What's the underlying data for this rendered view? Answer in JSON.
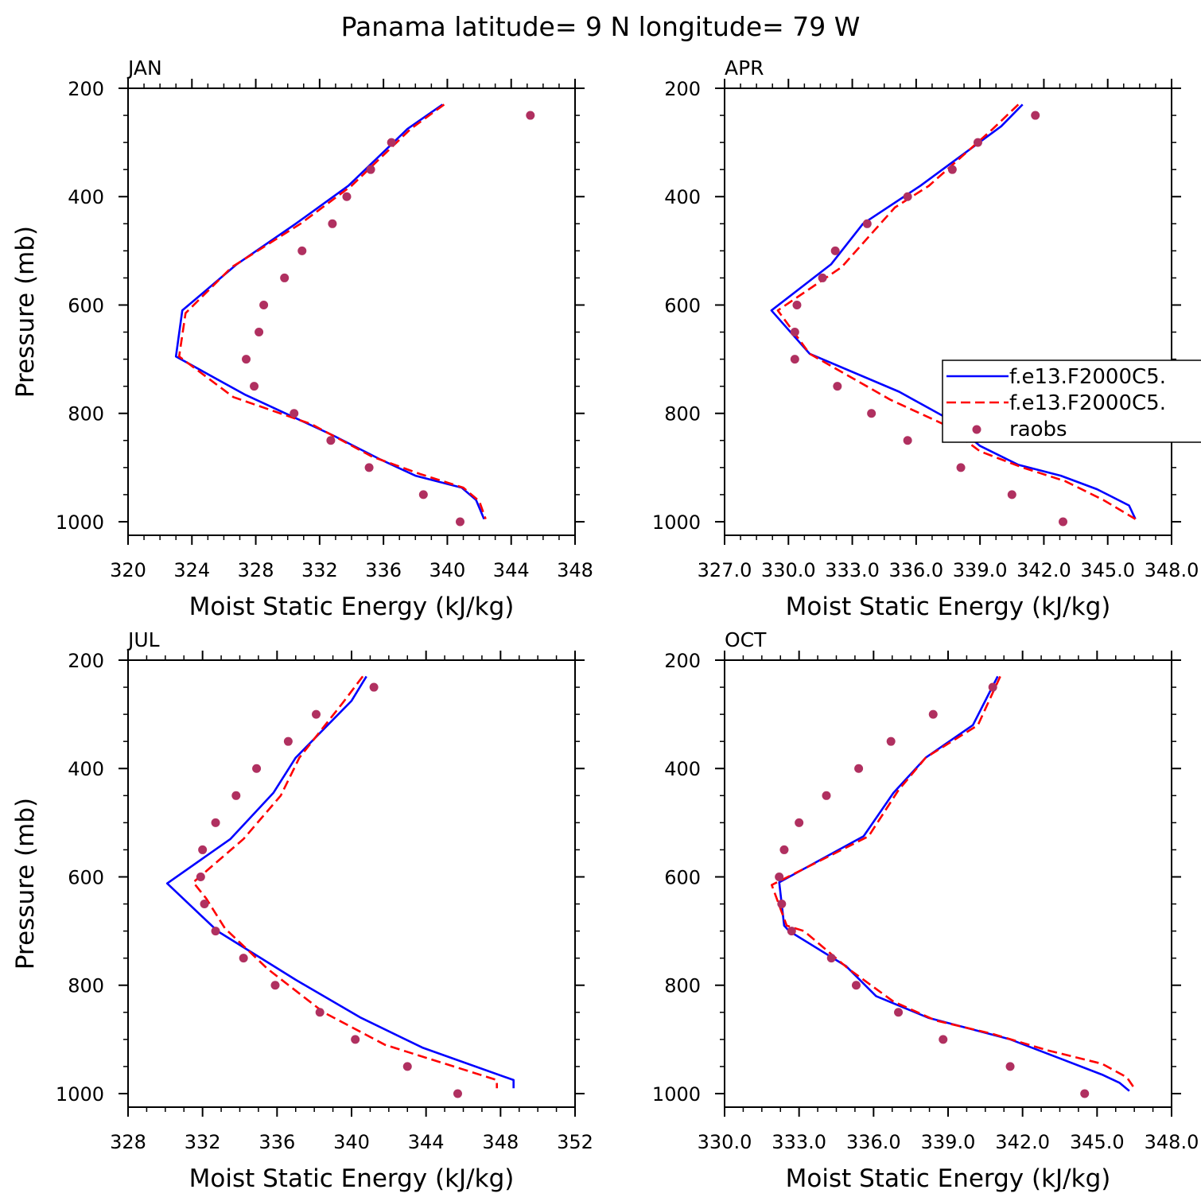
{
  "title": "Panama  latitude= 9 N longitude= 79 W",
  "legend": {
    "placement": "right-of-apr-panel",
    "entries": [
      {
        "label": "f.e13.F2000C5.",
        "color": "#0000ff",
        "style": "solid"
      },
      {
        "label": "f.e13.F2000C5.",
        "color": "#ff0000",
        "style": "dashed"
      },
      {
        "label": "raobs",
        "color": "#b03060",
        "style": "dot"
      }
    ]
  },
  "chart_data": [
    {
      "type": "line",
      "title": "JAN",
      "xlabel": "Moist Static Energy (kJ/kg)",
      "ylabel": "Pressure (mb)",
      "xlim": [
        320,
        348
      ],
      "ylim": [
        200,
        1025
      ],
      "y_inverted": true,
      "xticks": [
        320,
        324,
        328,
        332,
        336,
        340,
        344,
        348
      ],
      "xtick_labels": [
        "320",
        "324",
        "328",
        "332",
        "336",
        "340",
        "344",
        "348"
      ],
      "yticks": [
        200,
        400,
        600,
        800,
        1000
      ],
      "ytick_labels": [
        "200",
        "400",
        "600",
        "800",
        "1000"
      ],
      "series": [
        {
          "name": "f.e13.F2000C5.",
          "color": "#0000ff",
          "style": "solid",
          "x": [
            339.7,
            337.5,
            333.8,
            330.5,
            326.8,
            323.4,
            323.0,
            327.3,
            332.8,
            335.8,
            338.0,
            340.9,
            341.8,
            342.3
          ],
          "y": [
            230,
            275,
            380,
            450,
            525,
            610,
            695,
            765,
            840,
            885,
            915,
            937,
            960,
            995
          ]
        },
        {
          "name": "f.e13.F2000C5.",
          "color": "#ff0000",
          "style": "dashed",
          "x": [
            339.8,
            337.7,
            334.0,
            330.8,
            326.5,
            323.6,
            323.2,
            326.6,
            331.5,
            335.3,
            338.3,
            341.0,
            342.0,
            342.4
          ],
          "y": [
            230,
            275,
            380,
            450,
            530,
            615,
            695,
            770,
            820,
            880,
            912,
            937,
            962,
            995
          ]
        },
        {
          "name": "raobs",
          "color": "#b03060",
          "style": "dot",
          "x": [
            345.2,
            336.5,
            335.2,
            333.7,
            332.8,
            330.9,
            329.8,
            328.5,
            328.2,
            327.4,
            327.9,
            330.4,
            332.7,
            335.1,
            338.5,
            340.8
          ],
          "y": [
            250,
            300,
            350,
            400,
            450,
            500,
            550,
            600,
            650,
            700,
            750,
            800,
            850,
            900,
            950,
            1000
          ]
        }
      ]
    },
    {
      "type": "line",
      "title": "APR",
      "xlabel": "Moist Static Energy (kJ/kg)",
      "ylabel": "",
      "xlim": [
        327.0,
        348.0
      ],
      "ylim": [
        200,
        1025
      ],
      "y_inverted": true,
      "xticks": [
        327,
        330,
        333,
        336,
        339,
        342,
        345,
        348
      ],
      "xtick_labels": [
        "327.0",
        "330.0",
        "333.0",
        "336.0",
        "339.0",
        "342.0",
        "345.0",
        "348.0"
      ],
      "yticks": [
        200,
        400,
        600,
        800,
        1000
      ],
      "ytick_labels": [
        "200",
        "400",
        "600",
        "800",
        "1000"
      ],
      "series": [
        {
          "name": "f.e13.F2000C5.",
          "color": "#0000ff",
          "style": "solid",
          "x": [
            341.0,
            340.0,
            336.2,
            333.5,
            332.0,
            329.2,
            331.0,
            335.2,
            337.5,
            339.0,
            340.8,
            342.8,
            344.5,
            346.0,
            346.3
          ],
          "y": [
            230,
            270,
            380,
            450,
            525,
            610,
            690,
            760,
            810,
            860,
            895,
            915,
            940,
            970,
            995
          ]
        },
        {
          "name": "f.e13.F2000C5.",
          "color": "#ff0000",
          "style": "dashed",
          "x": [
            340.8,
            339.6,
            336.6,
            335.0,
            332.5,
            329.5,
            331.0,
            334.8,
            337.3,
            339.0,
            341.0,
            343.0,
            344.8,
            346.3
          ],
          "y": [
            230,
            275,
            380,
            420,
            530,
            610,
            690,
            775,
            820,
            870,
            900,
            925,
            960,
            995
          ]
        },
        {
          "name": "raobs",
          "color": "#b03060",
          "style": "dot",
          "x": [
            341.6,
            338.9,
            337.7,
            335.6,
            333.7,
            332.2,
            331.6,
            330.4,
            330.3,
            330.3,
            332.3,
            333.9,
            335.6,
            338.1,
            340.5,
            342.9
          ],
          "y": [
            250,
            300,
            350,
            400,
            450,
            500,
            550,
            600,
            650,
            700,
            750,
            800,
            850,
            900,
            950,
            1000
          ]
        }
      ]
    },
    {
      "type": "line",
      "title": "JUL",
      "xlabel": "Moist Static Energy (kJ/kg)",
      "ylabel": "Pressure (mb)",
      "xlim": [
        328,
        352
      ],
      "ylim": [
        200,
        1025
      ],
      "y_inverted": true,
      "xticks": [
        328,
        332,
        336,
        340,
        344,
        348,
        352
      ],
      "xtick_labels": [
        "328",
        "332",
        "336",
        "340",
        "344",
        "348",
        "352"
      ],
      "yticks": [
        200,
        400,
        600,
        800,
        1000
      ],
      "ytick_labels": [
        "200",
        "400",
        "600",
        "800",
        "1000"
      ],
      "series": [
        {
          "name": "f.e13.F2000C5.",
          "color": "#0000ff",
          "style": "solid",
          "x": [
            340.8,
            340.0,
            337.0,
            335.8,
            333.5,
            330.1,
            332.8,
            337.0,
            340.5,
            343.8,
            348.7,
            348.7
          ],
          "y": [
            230,
            275,
            380,
            445,
            530,
            612,
            700,
            790,
            860,
            915,
            975,
            990
          ]
        },
        {
          "name": "f.e13.F2000C5.",
          "color": "#ff0000",
          "style": "dashed",
          "x": [
            340.6,
            339.5,
            337.2,
            336.2,
            334.2,
            331.5,
            332.2,
            333.2,
            335.5,
            338.5,
            341.8,
            347.8,
            347.8
          ],
          "y": [
            230,
            280,
            380,
            450,
            530,
            610,
            640,
            695,
            770,
            850,
            910,
            975,
            990
          ]
        },
        {
          "name": "raobs",
          "color": "#b03060",
          "style": "dot",
          "x": [
            341.2,
            338.1,
            336.6,
            334.9,
            333.8,
            332.7,
            332.0,
            331.9,
            332.1,
            332.7,
            334.2,
            335.9,
            338.3,
            340.2,
            343.0,
            345.7
          ],
          "y": [
            250,
            300,
            350,
            400,
            450,
            500,
            550,
            600,
            650,
            700,
            750,
            800,
            850,
            900,
            950,
            1000
          ]
        }
      ]
    },
    {
      "type": "line",
      "title": "OCT",
      "xlabel": "Moist Static Energy (kJ/kg)",
      "ylabel": "",
      "xlim": [
        330.0,
        348.0
      ],
      "ylim": [
        200,
        1025
      ],
      "y_inverted": true,
      "xticks": [
        330,
        333,
        336,
        339,
        342,
        345,
        348
      ],
      "xtick_labels": [
        "330.0",
        "333.0",
        "336.0",
        "339.0",
        "342.0",
        "345.0",
        "348.0"
      ],
      "yticks": [
        200,
        400,
        600,
        800,
        1000
      ],
      "ytick_labels": [
        "200",
        "400",
        "600",
        "800",
        "1000"
      ],
      "series": [
        {
          "name": "f.e13.F2000C5.",
          "color": "#0000ff",
          "style": "solid",
          "x": [
            341.0,
            340.0,
            338.1,
            336.8,
            335.6,
            332.2,
            332.4,
            332.6,
            334.9,
            336.1,
            338.2,
            341.5,
            343.5,
            345.2,
            345.9,
            346.3
          ],
          "y": [
            230,
            320,
            380,
            445,
            525,
            610,
            690,
            700,
            765,
            820,
            860,
            900,
            935,
            965,
            980,
            995
          ]
        },
        {
          "name": "f.e13.F2000C5.",
          "color": "#ff0000",
          "style": "dashed",
          "x": [
            341.1,
            340.2,
            338.1,
            337.0,
            335.8,
            331.9,
            332.5,
            333.2,
            335.0,
            336.8,
            338.5,
            340.8,
            343.0,
            345.2,
            346.2,
            346.5
          ],
          "y": [
            230,
            320,
            380,
            440,
            525,
            615,
            690,
            700,
            770,
            830,
            865,
            890,
            920,
            945,
            970,
            990
          ]
        },
        {
          "name": "raobs",
          "color": "#b03060",
          "style": "dot",
          "x": [
            340.8,
            338.4,
            336.7,
            335.4,
            334.1,
            333.0,
            332.4,
            332.2,
            332.3,
            332.7,
            334.3,
            335.3,
            337.0,
            338.8,
            341.5,
            344.5
          ],
          "y": [
            250,
            300,
            350,
            400,
            450,
            500,
            550,
            600,
            650,
            700,
            750,
            800,
            850,
            900,
            950,
            1000
          ]
        }
      ]
    }
  ]
}
